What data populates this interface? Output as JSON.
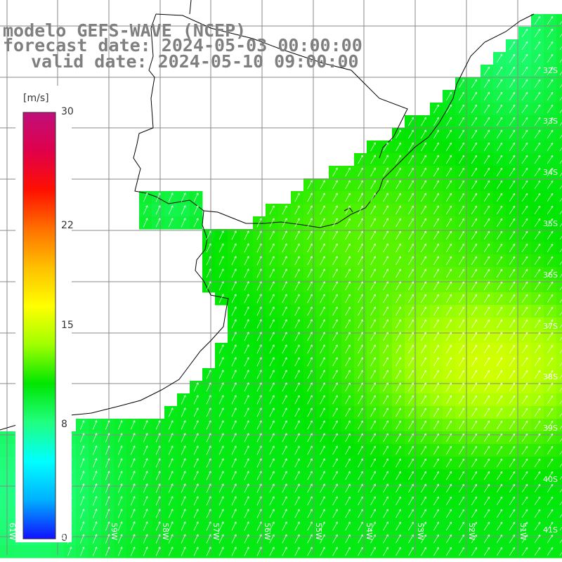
{
  "title": {
    "line1": "modelo GEFS-WAVE (NCEP)",
    "line2": "forecast date: 2024-05-03 00:00:00",
    "line3": "valid date: 2024-05-10 09:00:00"
  },
  "colorbar": {
    "unit": "[m/s]",
    "ticks": [
      {
        "label": "30",
        "value": 30
      },
      {
        "label": "22",
        "value": 22
      },
      {
        "label": "15",
        "value": 15
      },
      {
        "label": "8",
        "value": 8
      },
      {
        "label": "0",
        "value": 0
      }
    ],
    "min": 0,
    "max": 30,
    "colors": [
      "#1010ff",
      "#00b0ff",
      "#00ffff",
      "#20ff80",
      "#00e600",
      "#a0ff00",
      "#ffff00",
      "#ffc000",
      "#ff7000",
      "#ff1000",
      "#e0004a",
      "#c0107a"
    ]
  },
  "map": {
    "lat_labels": [
      "32S",
      "33S",
      "34S",
      "35S",
      "36S",
      "37S",
      "38S",
      "39S",
      "40S",
      "41S"
    ],
    "lon_labels": [
      "61W",
      "60W",
      "59W",
      "58W",
      "57W",
      "56W",
      "55W",
      "54W",
      "53W",
      "52W",
      "51W"
    ],
    "land_color": "#ffffff",
    "grid_color": "#888888",
    "coast_color": "#000000",
    "arrow_color": "#ffffff"
  }
}
